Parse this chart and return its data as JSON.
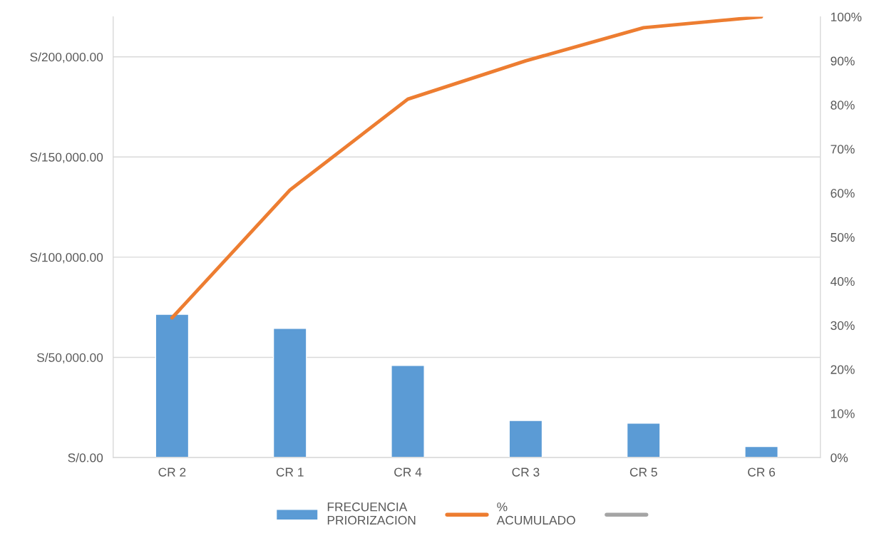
{
  "chart_data": {
    "type": "bar",
    "categories": [
      "CR 2",
      "CR 1",
      "CR 4",
      "CR 3",
      "CR 5",
      "CR 6"
    ],
    "series": [
      {
        "name": "FRECUENCIA PRIORIZACION",
        "color": "#5b9bd5",
        "values": [
          71500,
          64500,
          46000,
          18500,
          17200,
          5500
        ]
      },
      {
        "name": "% ACUMULADO",
        "type": "line",
        "axis": "y2",
        "color": "#ed7d31",
        "values": [
          31.7,
          60.7,
          81.3,
          90.0,
          97.5,
          100
        ]
      },
      {
        "type": "line",
        "axis": "y2",
        "color": "#a5a5a5",
        "values": [
          null,
          null,
          null,
          null,
          null,
          null
        ]
      }
    ],
    "ylim": [
      0,
      220000
    ],
    "yticks": [
      {
        "value": 0,
        "label": "S/0.00"
      },
      {
        "value": 50000,
        "label": "S/50,000.00"
      },
      {
        "value": 100000,
        "label": "S/100,000.00"
      },
      {
        "value": 150000,
        "label": "S/150,000.00"
      },
      {
        "value": 200000,
        "label": "S/200,000.00"
      }
    ],
    "y2lim": [
      0,
      100
    ],
    "y2ticks": [
      {
        "value": 0,
        "label": "0%"
      },
      {
        "value": 10,
        "label": "10%"
      },
      {
        "value": 20,
        "label": "20%"
      },
      {
        "value": 30,
        "label": "30%"
      },
      {
        "value": 40,
        "label": "40%"
      },
      {
        "value": 50,
        "label": "50%"
      },
      {
        "value": 60,
        "label": "60%"
      },
      {
        "value": 70,
        "label": "70%"
      },
      {
        "value": 80,
        "label": "80%"
      },
      {
        "value": 90,
        "label": "90%"
      },
      {
        "value": 100,
        "label": "100%"
      }
    ],
    "grid": "y",
    "legend": "bottom",
    "marker": "none",
    "line_style": "solid"
  }
}
